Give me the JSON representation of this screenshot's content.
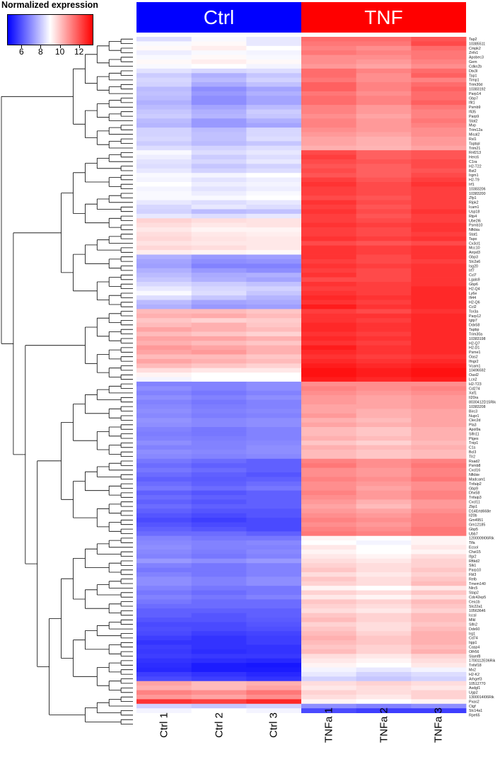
{
  "legend": {
    "title": "Normalized expression",
    "ticks": [
      "6",
      "8",
      "10",
      "12"
    ],
    "tick_values": [
      6,
      8,
      10,
      12
    ],
    "range": [
      4.5,
      13.5
    ]
  },
  "groups": {
    "ctrl": "Ctrl",
    "tnf": "TNF"
  },
  "samples": [
    "Ctrl 1",
    "Ctrl 2",
    "Ctrl 3",
    "TNFa 1",
    "TNFa 2",
    "TNFa 3"
  ],
  "chart_data": {
    "type": "heatmap",
    "title": "",
    "legend_title": "Normalized expression",
    "colorscale": {
      "low": "#0000ff",
      "mid": "#ffffff",
      "high": "#ff0000",
      "range": [
        4.5,
        13.5
      ],
      "midpoint": 9
    },
    "columns": [
      "Ctrl 1",
      "Ctrl 2",
      "Ctrl 3",
      "TNFa 1",
      "TNFa 2",
      "TNFa 3"
    ],
    "column_groups": [
      {
        "name": "Ctrl",
        "columns": [
          0,
          1,
          2
        ],
        "color": "#0000ff"
      },
      {
        "name": "TNF",
        "columns": [
          3,
          4,
          5
        ],
        "color": "#ff0000"
      }
    ],
    "rows": [
      "Tap2",
      "10385511",
      "Cmpk2",
      "Znfx1",
      "Apobec3",
      "Gem",
      "Cdkn2b",
      "Dtx3l",
      "Tap1",
      "Timp1",
      "Trim30d",
      "10383192",
      "Parp14",
      "Gbp7",
      "Ifit1",
      "Psmb9",
      "Ifi35",
      "Parp9",
      "Stat2",
      "Mvp",
      "Trim12a",
      "Mical2",
      "Rsl1",
      "Tapbpl",
      "Trim21",
      "Rnf213",
      "Herc6",
      "C1ra",
      "H2-T22",
      "Bst2",
      "Irgm1",
      "H2-T9",
      "Irf1",
      "10383206",
      "10383200",
      "Zfp1",
      "Ripk2",
      "Icam1",
      "Usp18",
      "Rtp4",
      "Ube2l6",
      "Psmb10",
      "Nfkbia",
      "Stat1",
      "Tapo",
      "Cx3cl1",
      "Mcc10",
      "Arrpd3",
      "Gbp3",
      "Slc2a6",
      "Isg20",
      "Irf7",
      "Ccl7",
      "Lgals9",
      "Gbp6",
      "H2-Q4",
      "Ly6e",
      "Ifi44",
      "H2-Q6",
      "Ccl2",
      "Tor3a",
      "Parp12",
      "Igtp7",
      "Ddx58",
      "Tapbp",
      "Trim30a",
      "10383198",
      "H2-Q7",
      "H2-D1",
      "Psme1",
      "Oas2",
      "Ifngr2",
      "Vcam1",
      "10496592",
      "Oasl2",
      "Lcn2",
      "H2-T23",
      "Cd274",
      "Xaf1",
      "Il20ra",
      "8030412D15Rik",
      "10383208",
      "Birc3",
      "Nupr1",
      "Clec2d",
      "Pla3",
      "Apol9a",
      "Slfn11",
      "Ptges",
      "Tnip1",
      "C1s",
      "Bcl3",
      "Tlr2",
      "Rsad2",
      "Psmb8",
      "Cxcl16",
      "Nfkbie",
      "Madcam1",
      "Tnfaip2",
      "Gbp9",
      "Dhx58",
      "Tnfaip3",
      "Cxcl11",
      "Zbp1",
      "D14Ertd668e",
      "Il20b",
      "Gm4951",
      "Gm12185",
      "Gbp5",
      "Ubb7",
      "1200009I06Rik",
      "Tifa",
      "Ecsol",
      "Chst15",
      "Ifgr2",
      "Rftkd2",
      "Slk1",
      "Parp10",
      "Fbl3",
      "Relb",
      "Tmem140",
      "Nlrc5",
      "Stap2",
      "Cdc42ep5",
      "Cea1b",
      "Slc22a1",
      "10563646",
      "Iccsl",
      "Mlkl",
      "Slfn2",
      "Ddx60",
      "Irg1",
      "Cd74",
      "Iigp1",
      "Casp4",
      "Olfr56",
      "Slamf8",
      "1700112E06Rik",
      "Tnfsf18",
      "Mx2",
      "H2-K2",
      "Arhgef3",
      "10512770",
      "Asdgl1",
      "Ugp2",
      "1300014I06Rik",
      "Pxas2",
      "Ctgf",
      "Slc14a1",
      "Rpe65"
    ],
    "values": [
      [
        8.4,
        8.9,
        8.6,
        11.6,
        11.6,
        12.0
      ],
      [
        8.9,
        9.1,
        8.6,
        11.4,
        11.4,
        12.2
      ],
      [
        9.1,
        9.3,
        9.0,
        11.2,
        11.0,
        11.6
      ],
      [
        8.7,
        8.9,
        8.8,
        11.4,
        11.2,
        11.4
      ],
      [
        8.9,
        9.1,
        8.9,
        11.0,
        11.0,
        11.4
      ],
      [
        9.1,
        9.3,
        9.1,
        11.0,
        10.8,
        11.2
      ],
      [
        8.9,
        9.0,
        8.8,
        10.8,
        10.6,
        11.0
      ],
      [
        8.5,
        8.3,
        8.4,
        11.6,
        11.2,
        11.6
      ],
      [
        8.1,
        7.6,
        8.0,
        11.6,
        11.0,
        11.8
      ],
      [
        8.3,
        7.8,
        8.2,
        11.4,
        11.0,
        11.2
      ],
      [
        8.2,
        7.5,
        7.9,
        11.8,
        11.2,
        11.6
      ],
      [
        7.8,
        7.0,
        7.4,
        11.8,
        11.2,
        11.8
      ],
      [
        7.9,
        7.2,
        7.6,
        11.4,
        11.0,
        11.6
      ],
      [
        7.8,
        7.0,
        7.4,
        11.6,
        11.2,
        11.6
      ],
      [
        7.6,
        7.0,
        7.4,
        11.6,
        11.2,
        11.8
      ],
      [
        7.8,
        7.4,
        7.8,
        11.2,
        10.8,
        11.4
      ],
      [
        8.0,
        7.6,
        8.1,
        11.2,
        10.8,
        11.2
      ],
      [
        8.1,
        7.7,
        8.0,
        11.0,
        10.6,
        11.2
      ],
      [
        7.8,
        7.2,
        7.6,
        11.2,
        10.8,
        11.4
      ],
      [
        7.7,
        7.2,
        7.4,
        11.2,
        10.8,
        11.2
      ],
      [
        8.2,
        7.8,
        8.3,
        11.0,
        10.8,
        11.0
      ],
      [
        8.2,
        7.9,
        8.3,
        10.8,
        10.6,
        11.0
      ],
      [
        8.3,
        7.9,
        8.4,
        10.6,
        10.4,
        10.8
      ],
      [
        8.1,
        7.8,
        8.0,
        10.6,
        10.4,
        10.8
      ],
      [
        8.4,
        8.2,
        8.4,
        10.4,
        10.3,
        10.6
      ],
      [
        8.9,
        8.4,
        8.6,
        12.2,
        11.8,
        12.0
      ],
      [
        8.7,
        8.1,
        8.4,
        12.4,
        11.8,
        12.0
      ],
      [
        8.5,
        8.3,
        8.6,
        12.2,
        12.0,
        12.2
      ],
      [
        8.4,
        8.0,
        8.2,
        12.0,
        11.8,
        12.2
      ],
      [
        8.6,
        8.2,
        8.4,
        12.2,
        11.8,
        12.0
      ],
      [
        8.9,
        8.8,
        9.0,
        12.0,
        11.8,
        12.2
      ],
      [
        8.8,
        8.5,
        8.7,
        12.4,
        12.0,
        12.4
      ],
      [
        9.0,
        8.7,
        8.8,
        12.6,
        12.2,
        12.6
      ],
      [
        8.8,
        8.5,
        8.7,
        12.4,
        12.2,
        12.4
      ],
      [
        8.9,
        8.7,
        8.9,
        12.4,
        12.2,
        12.4
      ],
      [
        8.9,
        8.9,
        9.0,
        12.2,
        12.0,
        12.4
      ],
      [
        8.6,
        8.4,
        8.6,
        12.6,
        12.2,
        12.4
      ],
      [
        8.3,
        8.6,
        8.4,
        12.4,
        12.0,
        12.4
      ],
      [
        8.2,
        7.8,
        7.9,
        12.6,
        12.2,
        12.6
      ],
      [
        8.6,
        8.4,
        8.6,
        12.4,
        12.0,
        12.4
      ],
      [
        9.8,
        9.6,
        9.5,
        12.4,
        12.2,
        12.4
      ],
      [
        9.6,
        9.4,
        9.5,
        12.6,
        12.4,
        12.6
      ],
      [
        9.4,
        9.2,
        9.2,
        12.4,
        12.2,
        12.6
      ],
      [
        9.6,
        9.4,
        9.3,
        12.4,
        12.2,
        12.4
      ],
      [
        9.7,
        9.5,
        9.4,
        12.6,
        12.4,
        12.6
      ],
      [
        9.5,
        9.4,
        9.4,
        12.2,
        12.0,
        12.2
      ],
      [
        9.7,
        9.6,
        9.4,
        12.6,
        12.4,
        12.6
      ],
      [
        9.3,
        9.2,
        9.1,
        12.6,
        12.4,
        12.6
      ],
      [
        7.6,
        7.2,
        7.3,
        12.6,
        12.2,
        12.6
      ],
      [
        7.4,
        7.0,
        7.1,
        12.4,
        12.2,
        12.4
      ],
      [
        7.3,
        6.8,
        6.8,
        12.6,
        12.4,
        12.6
      ],
      [
        7.6,
        7.2,
        7.0,
        12.4,
        12.2,
        12.6
      ],
      [
        7.8,
        7.5,
        7.6,
        12.6,
        12.2,
        12.6
      ],
      [
        8.0,
        7.6,
        7.4,
        12.2,
        12.2,
        12.6
      ],
      [
        8.3,
        8.1,
        7.9,
        12.6,
        12.4,
        12.6
      ],
      [
        8.6,
        8.3,
        8.2,
        12.4,
        12.4,
        12.8
      ],
      [
        8.9,
        8.4,
        8.0,
        12.6,
        12.4,
        12.8
      ],
      [
        8.4,
        8.0,
        7.7,
        12.8,
        12.6,
        12.8
      ],
      [
        7.8,
        7.4,
        7.5,
        12.6,
        12.4,
        12.8
      ],
      [
        7.6,
        7.2,
        7.3,
        13.0,
        12.6,
        12.8
      ],
      [
        10.2,
        10.2,
        10.0,
        12.4,
        12.2,
        12.6
      ],
      [
        10.4,
        10.5,
        10.2,
        12.6,
        12.6,
        12.8
      ],
      [
        10.0,
        9.8,
        9.9,
        12.6,
        12.4,
        12.8
      ],
      [
        10.2,
        10.4,
        10.0,
        12.8,
        12.6,
        12.8
      ],
      [
        10.6,
        10.4,
        10.2,
        12.8,
        12.6,
        12.8
      ],
      [
        10.2,
        10.0,
        9.8,
        12.6,
        12.4,
        12.8
      ],
      [
        10.6,
        10.6,
        10.4,
        12.8,
        12.6,
        12.8
      ],
      [
        10.4,
        10.2,
        10.0,
        12.6,
        12.4,
        12.8
      ],
      [
        10.8,
        10.6,
        10.4,
        13.0,
        12.6,
        12.8
      ],
      [
        10.6,
        10.8,
        10.4,
        12.8,
        12.6,
        12.8
      ],
      [
        10.2,
        10.2,
        10.0,
        12.6,
        12.4,
        12.6
      ],
      [
        10.6,
        10.4,
        10.2,
        12.8,
        12.6,
        12.8
      ],
      [
        10.2,
        10.0,
        9.8,
        13.0,
        12.8,
        13.0
      ],
      [
        9.6,
        9.4,
        9.4,
        13.2,
        13.0,
        13.2
      ],
      [
        9.2,
        9.0,
        9.0,
        13.2,
        13.0,
        13.2
      ],
      [
        8.8,
        9.0,
        9.0,
        13.0,
        12.8,
        13.0
      ],
      [
        6.8,
        6.8,
        7.0,
        11.0,
        11.0,
        11.0
      ],
      [
        7.0,
        6.8,
        7.0,
        11.2,
        11.0,
        11.2
      ],
      [
        6.8,
        6.6,
        6.8,
        11.0,
        10.8,
        11.0
      ],
      [
        7.0,
        6.8,
        7.0,
        10.8,
        10.6,
        10.8
      ],
      [
        6.8,
        6.6,
        6.8,
        10.8,
        10.6,
        10.8
      ],
      [
        6.9,
        6.7,
        6.8,
        10.6,
        10.6,
        10.8
      ],
      [
        7.0,
        6.8,
        6.9,
        10.6,
        10.4,
        10.6
      ],
      [
        6.9,
        6.7,
        6.8,
        10.8,
        10.4,
        10.6
      ],
      [
        7.1,
        6.9,
        7.0,
        10.4,
        10.2,
        10.6
      ],
      [
        7.0,
        6.9,
        7.0,
        10.6,
        10.4,
        10.6
      ],
      [
        6.8,
        6.6,
        6.8,
        10.2,
        10.0,
        10.4
      ],
      [
        6.7,
        6.6,
        6.8,
        10.2,
        10.0,
        10.4
      ],
      [
        6.8,
        6.7,
        6.8,
        10.4,
        10.2,
        10.4
      ],
      [
        7.0,
        6.8,
        6.9,
        10.0,
        9.8,
        10.2
      ],
      [
        6.8,
        6.8,
        7.0,
        10.4,
        10.2,
        10.4
      ],
      [
        7.0,
        6.9,
        7.0,
        10.2,
        10.0,
        10.2
      ],
      [
        6.9,
        6.8,
        6.9,
        10.2,
        10.0,
        10.2
      ],
      [
        6.6,
        6.4,
        6.2,
        11.2,
        11.0,
        11.2
      ],
      [
        6.4,
        6.2,
        6.2,
        11.4,
        11.0,
        11.4
      ],
      [
        6.6,
        6.4,
        6.2,
        11.0,
        10.8,
        11.2
      ],
      [
        6.4,
        6.2,
        6.0,
        11.0,
        10.8,
        11.2
      ],
      [
        6.2,
        6.1,
        6.2,
        11.2,
        11.0,
        11.4
      ],
      [
        6.4,
        6.2,
        6.4,
        11.0,
        10.8,
        11.0
      ],
      [
        6.6,
        6.4,
        6.6,
        11.0,
        10.6,
        11.0
      ],
      [
        6.2,
        6.0,
        6.2,
        11.2,
        10.8,
        11.2
      ],
      [
        6.4,
        6.2,
        6.2,
        11.0,
        10.8,
        11.2
      ],
      [
        6.2,
        6.0,
        6.2,
        10.8,
        10.4,
        10.8
      ],
      [
        6.4,
        6.2,
        6.2,
        10.6,
        10.2,
        10.8
      ],
      [
        6.2,
        6.0,
        6.0,
        10.8,
        10.6,
        11.0
      ],
      [
        6.0,
        5.8,
        6.0,
        11.0,
        10.8,
        11.2
      ],
      [
        5.8,
        5.6,
        5.8,
        11.2,
        11.0,
        11.2
      ],
      [
        6.0,
        5.8,
        5.8,
        11.0,
        10.8,
        11.2
      ],
      [
        6.2,
        6.0,
        5.8,
        11.2,
        11.0,
        11.4
      ],
      [
        6.4,
        6.4,
        6.2,
        11.4,
        11.2,
        11.4
      ],
      [
        6.8,
        6.6,
        6.6,
        9.2,
        9.0,
        9.2
      ],
      [
        6.9,
        6.8,
        6.9,
        9.0,
        8.8,
        9.2
      ],
      [
        7.0,
        6.8,
        6.8,
        9.4,
        9.0,
        9.4
      ],
      [
        6.9,
        6.7,
        6.9,
        9.2,
        9.0,
        9.2
      ],
      [
        6.8,
        6.6,
        6.8,
        9.4,
        9.2,
        9.6
      ],
      [
        7.2,
        7.0,
        7.2,
        9.6,
        9.4,
        9.8
      ],
      [
        6.8,
        6.6,
        6.8,
        9.8,
        9.6,
        9.8
      ],
      [
        6.6,
        6.6,
        6.8,
        10.0,
        9.6,
        10.0
      ],
      [
        6.8,
        6.6,
        6.8,
        9.6,
        9.4,
        9.8
      ],
      [
        7.0,
        6.8,
        7.0,
        10.0,
        9.6,
        10.0
      ],
      [
        7.0,
        6.8,
        7.0,
        9.8,
        9.6,
        10.2
      ],
      [
        6.8,
        6.6,
        6.6,
        9.2,
        9.0,
        9.4
      ],
      [
        6.6,
        6.4,
        6.6,
        9.8,
        9.6,
        10.0
      ],
      [
        6.8,
        6.6,
        6.8,
        9.4,
        9.2,
        9.6
      ],
      [
        6.6,
        6.4,
        6.4,
        10.0,
        9.8,
        10.2
      ],
      [
        6.4,
        6.4,
        6.4,
        9.8,
        9.6,
        10.0
      ],
      [
        6.2,
        6.2,
        6.2,
        9.6,
        9.4,
        9.8
      ],
      [
        6.2,
        6.0,
        6.2,
        10.0,
        9.8,
        10.2
      ],
      [
        6.0,
        6.0,
        6.1,
        10.2,
        9.8,
        10.2
      ],
      [
        5.8,
        5.8,
        6.0,
        9.8,
        9.6,
        10.0
      ],
      [
        5.9,
        5.8,
        5.9,
        10.0,
        9.6,
        10.2
      ],
      [
        5.8,
        5.6,
        5.7,
        10.2,
        9.8,
        10.4
      ],
      [
        5.6,
        5.4,
        5.6,
        10.4,
        10.0,
        10.4
      ],
      [
        5.4,
        5.4,
        5.6,
        10.2,
        10.0,
        10.4
      ],
      [
        5.6,
        5.4,
        5.4,
        10.0,
        9.8,
        10.2
      ],
      [
        5.5,
        5.3,
        5.4,
        10.2,
        9.8,
        10.4
      ],
      [
        5.6,
        5.5,
        5.5,
        9.6,
        9.4,
        9.8
      ],
      [
        5.4,
        5.3,
        5.2,
        9.4,
        9.2,
        9.6
      ],
      [
        5.3,
        5.0,
        4.9,
        9.2,
        9.0,
        9.4
      ],
      [
        5.2,
        5.0,
        5.0,
        8.8,
        8.6,
        8.8
      ],
      [
        5.6,
        5.4,
        5.2,
        8.6,
        8.2,
        8.4
      ],
      [
        5.8,
        5.6,
        5.4,
        8.2,
        8.0,
        8.2
      ],
      [
        10.6,
        10.2,
        10.4,
        9.6,
        9.8,
        9.6
      ],
      [
        10.4,
        10.2,
        10.6,
        9.4,
        9.6,
        9.4
      ],
      [
        11.2,
        11.0,
        11.4,
        9.8,
        9.6,
        9.8
      ],
      [
        10.8,
        10.6,
        11.0,
        9.6,
        9.4,
        9.8
      ],
      [
        12.6,
        12.4,
        12.8,
        9.2,
        9.0,
        9.2
      ],
      [
        8.2,
        8.0,
        8.2,
        7.0,
        6.8,
        7.0
      ],
      [
        8.8,
        9.0,
        8.8,
        5.8,
        5.6,
        5.6
      ]
    ]
  }
}
